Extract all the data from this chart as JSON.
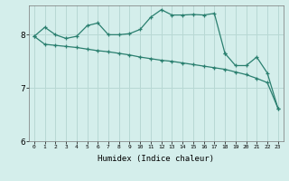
{
  "xlabel": "Humidex (Indice chaleur)",
  "background_color": "#d4eeeb",
  "grid_color": "#b8d8d4",
  "line_color": "#2a7f6f",
  "xlim": [
    -0.5,
    23.5
  ],
  "ylim": [
    6.0,
    8.55
  ],
  "yticks": [
    6,
    7,
    8
  ],
  "xticks": [
    0,
    1,
    2,
    3,
    4,
    5,
    6,
    7,
    8,
    9,
    10,
    11,
    12,
    13,
    14,
    15,
    16,
    17,
    18,
    19,
    20,
    21,
    22,
    23
  ],
  "line1_x": [
    0,
    1,
    2,
    3,
    4,
    5,
    6,
    7,
    8,
    9,
    10,
    11,
    12,
    13,
    14,
    15,
    16,
    17,
    18
  ],
  "line1_y": [
    7.97,
    8.14,
    8.0,
    7.93,
    7.97,
    8.17,
    8.22,
    8.0,
    8.0,
    8.02,
    8.1,
    8.33,
    8.47,
    8.37,
    8.37,
    8.38,
    8.37,
    8.4,
    7.65
  ],
  "line2_x": [
    0,
    1,
    2,
    3,
    4,
    5,
    6,
    7,
    8,
    9,
    10,
    11,
    12,
    13,
    14,
    15,
    16,
    17,
    18,
    19,
    20,
    21,
    22,
    23
  ],
  "line2_y": [
    7.97,
    7.82,
    7.8,
    7.78,
    7.76,
    7.73,
    7.7,
    7.68,
    7.65,
    7.62,
    7.58,
    7.55,
    7.52,
    7.5,
    7.47,
    7.44,
    7.41,
    7.38,
    7.35,
    7.3,
    7.25,
    7.18,
    7.1,
    6.62
  ],
  "line3_x": [
    18,
    19,
    20,
    21,
    22,
    23
  ],
  "line3_y": [
    7.65,
    7.42,
    7.42,
    7.58,
    7.28,
    6.62
  ]
}
